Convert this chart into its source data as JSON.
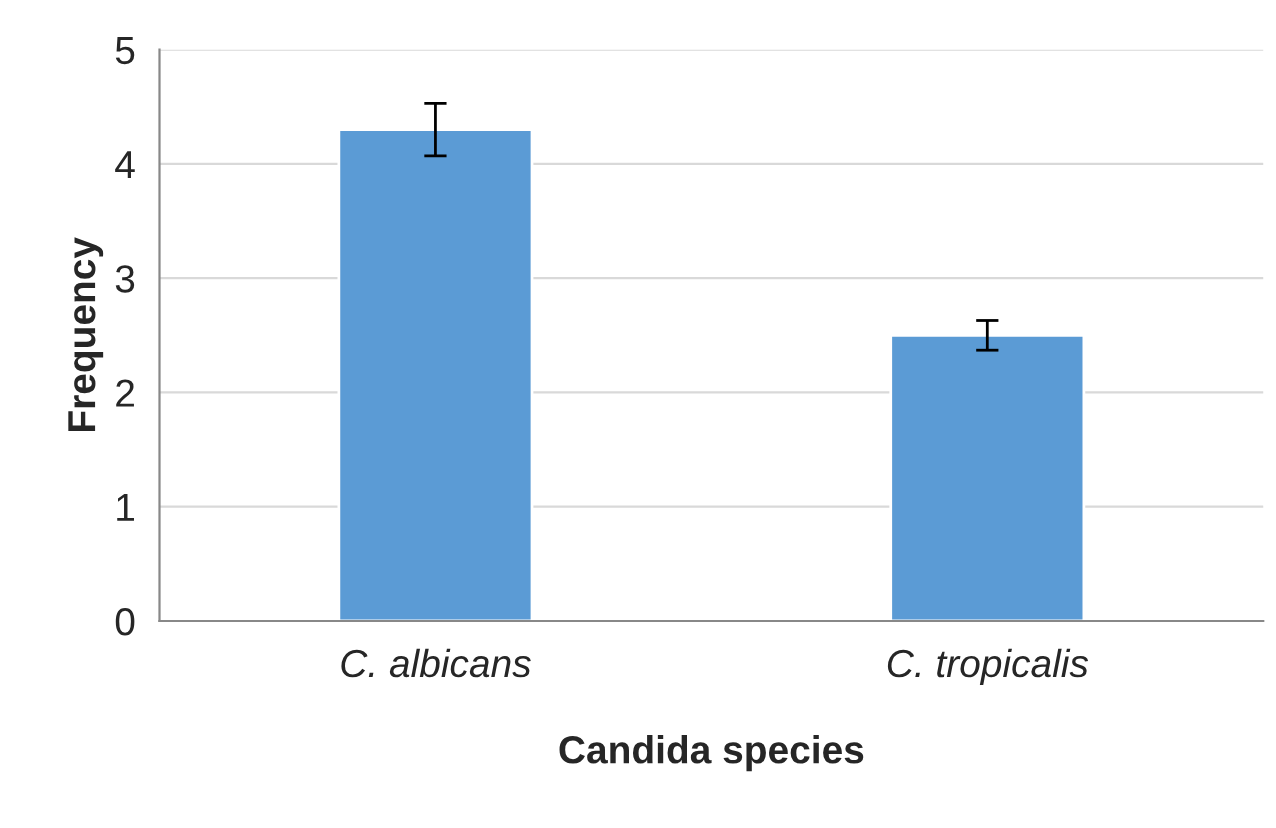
{
  "chart_data": {
    "type": "bar",
    "xlabel": "Candida species",
    "ylabel": "Frequency",
    "categories": [
      "C. albicans",
      "C. tropicalis"
    ],
    "values": [
      4.3,
      2.5
    ],
    "errors": [
      0.23,
      0.13
    ],
    "color": "#5b9bd5",
    "ylim": [
      0,
      5
    ],
    "yticks": [
      0,
      1,
      2,
      3,
      4,
      5
    ],
    "grid": "y",
    "legend": false
  }
}
